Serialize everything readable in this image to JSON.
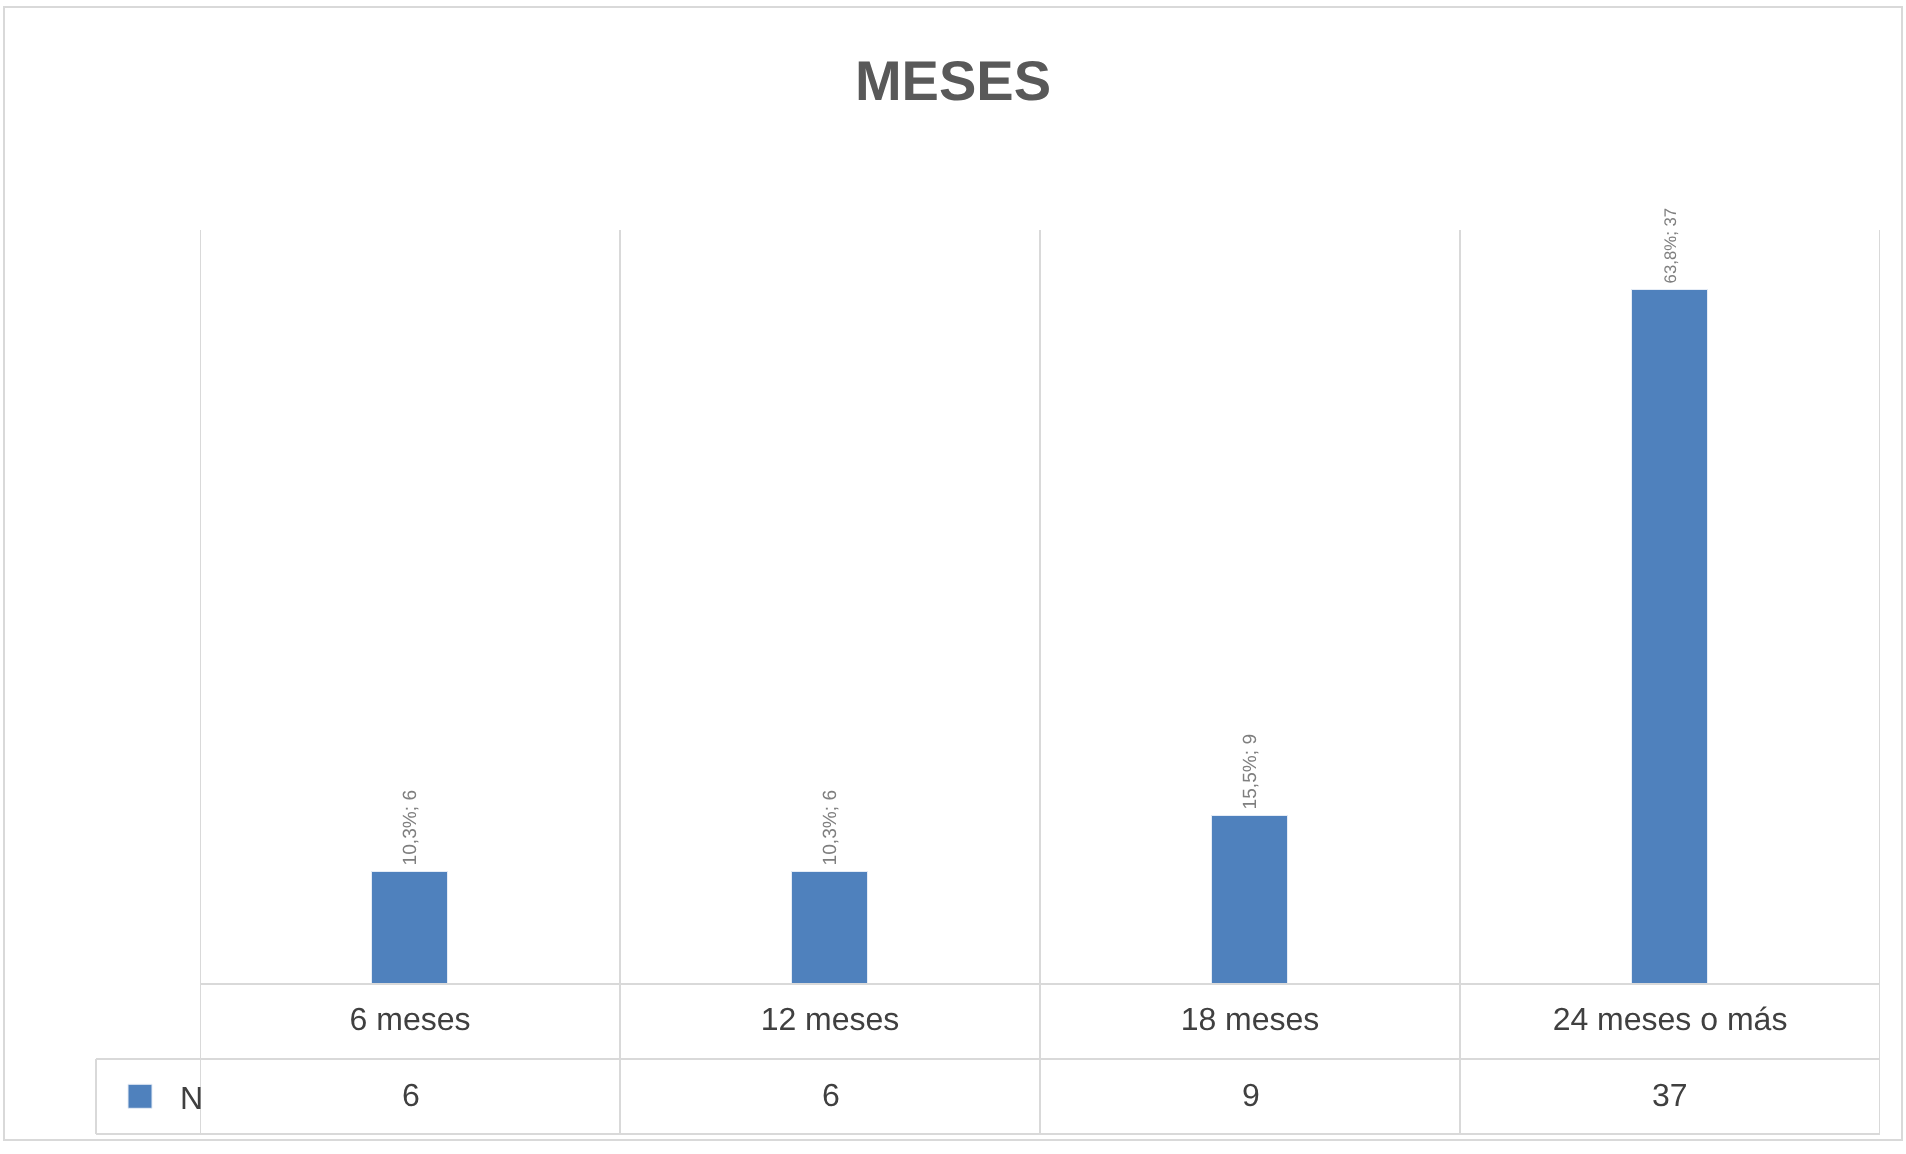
{
  "chart_data": {
    "type": "bar",
    "title": "MESES",
    "categories": [
      "6 meses",
      "12 meses",
      "18 meses",
      "24 meses o más"
    ],
    "series": [
      {
        "name": "N",
        "color": "#4f81bd",
        "values": [
          6,
          6,
          9,
          37
        ],
        "value_labels": [
          "10,3%; 6",
          "10,3%; 6",
          "15,5%; 9",
          "63,8%; 37"
        ]
      }
    ],
    "annotations": [
      "6",
      "6",
      "9",
      "37"
    ],
    "data_labels": true,
    "legend": "bottom left"
  }
}
